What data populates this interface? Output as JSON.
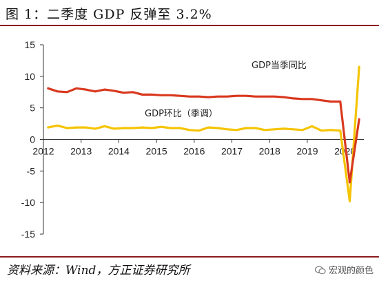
{
  "title": "图 1：二季度 GDP 反弹至 3.2%",
  "source": "资料来源：Wind，方正证券研究所",
  "watermark": "宏观的颜色",
  "chart_data": {
    "type": "line",
    "title": "图 1：二季度 GDP 反弹至 3.2%",
    "xlabel": "",
    "ylabel": "",
    "ylim": [
      -15,
      15
    ],
    "yticks": [
      15,
      10,
      5,
      0,
      -5,
      -10,
      -15
    ],
    "xticks": [
      "2012",
      "2013",
      "2014",
      "2015",
      "2016",
      "2017",
      "2018",
      "2019",
      "2020"
    ],
    "grid": false,
    "x": [
      "2012Q1",
      "2012Q2",
      "2012Q3",
      "2012Q4",
      "2013Q1",
      "2013Q2",
      "2013Q3",
      "2013Q4",
      "2014Q1",
      "2014Q2",
      "2014Q3",
      "2014Q4",
      "2015Q1",
      "2015Q2",
      "2015Q3",
      "2015Q4",
      "2016Q1",
      "2016Q2",
      "2016Q3",
      "2016Q4",
      "2017Q1",
      "2017Q2",
      "2017Q3",
      "2017Q4",
      "2018Q1",
      "2018Q2",
      "2018Q3",
      "2018Q4",
      "2019Q1",
      "2019Q2",
      "2019Q3",
      "2019Q4",
      "2020Q1",
      "2020Q2"
    ],
    "series": [
      {
        "name": "GDP当季同比",
        "color": "#d9381e",
        "values": [
          8.1,
          7.6,
          7.5,
          8.1,
          7.9,
          7.6,
          7.9,
          7.7,
          7.4,
          7.5,
          7.1,
          7.1,
          7.0,
          7.0,
          6.9,
          6.8,
          6.8,
          6.7,
          6.8,
          6.8,
          6.9,
          6.9,
          6.8,
          6.8,
          6.8,
          6.7,
          6.5,
          6.4,
          6.4,
          6.2,
          6.0,
          6.0,
          -6.8,
          3.2
        ]
      },
      {
        "name": "GDP环比（季调）",
        "color": "#f5c400",
        "values": [
          1.9,
          2.2,
          1.8,
          1.9,
          1.9,
          1.7,
          2.1,
          1.7,
          1.8,
          1.8,
          1.9,
          1.8,
          2.0,
          1.8,
          1.8,
          1.5,
          1.4,
          1.9,
          1.8,
          1.6,
          1.5,
          1.8,
          1.8,
          1.5,
          1.6,
          1.7,
          1.6,
          1.5,
          2.1,
          1.4,
          1.5,
          1.4,
          -9.8,
          11.5
        ]
      }
    ]
  }
}
